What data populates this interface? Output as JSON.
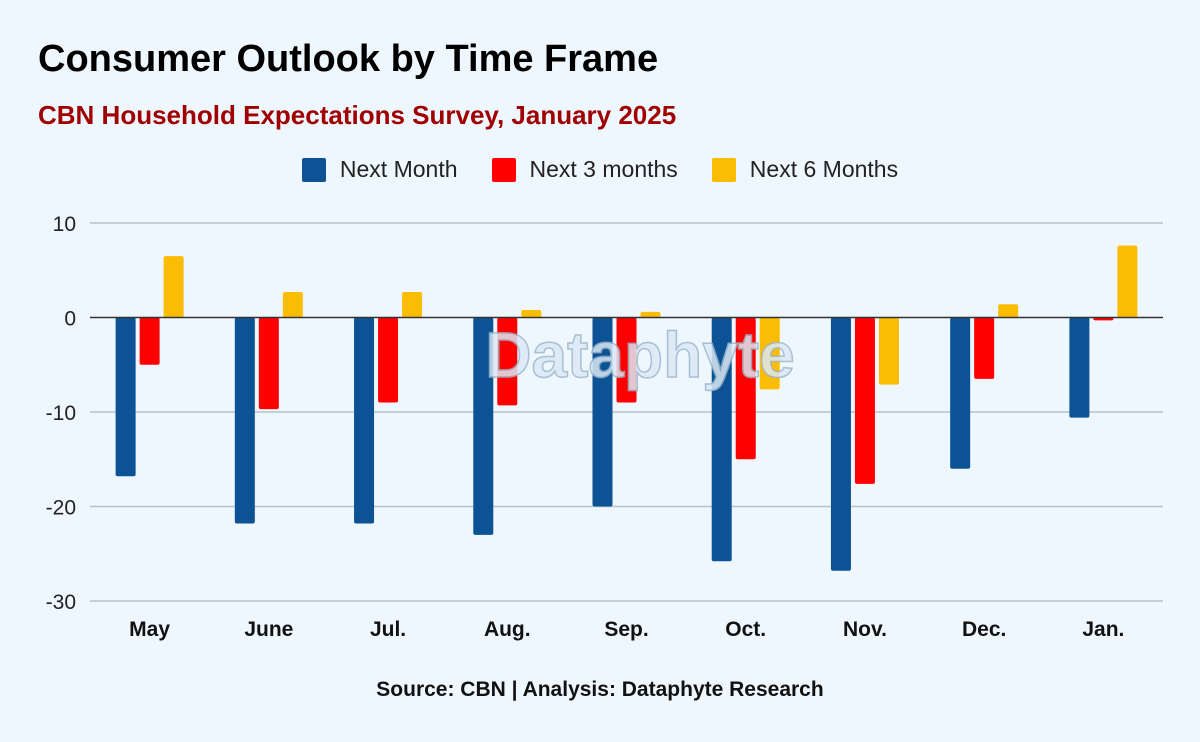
{
  "title": "Consumer Outlook by Time Frame",
  "subtitle": "CBN Household Expectations Survey, January 2025",
  "source": "Source: CBN | Analysis: Dataphyte Research",
  "watermark": "Dataphyte",
  "colors": {
    "next_month": "#0b5394",
    "next_3_months": "#ff0000",
    "next_6_months": "#fbbc04"
  },
  "chart_data": {
    "type": "bar",
    "title": "Consumer Outlook by Time Frame",
    "subtitle": "CBN Household Expectations Survey, January 2025",
    "xlabel": "",
    "ylabel": "",
    "ylim": [
      -30,
      10
    ],
    "yticks": [
      10,
      0,
      -10,
      -20,
      -30
    ],
    "grid": true,
    "legend_position": "top-center",
    "categories": [
      "May",
      "June",
      "Jul.",
      "Aug.",
      "Sep.",
      "Oct.",
      "Nov.",
      "Dec.",
      "Jan."
    ],
    "series": [
      {
        "name": "Next Month",
        "color": "#0b5394",
        "values": [
          -16.8,
          -21.8,
          -21.8,
          -23.0,
          -20.0,
          -25.8,
          -26.8,
          -16.0,
          -10.6
        ]
      },
      {
        "name": "Next 3 months",
        "color": "#ff0000",
        "values": [
          -5.0,
          -9.7,
          -9.0,
          -9.3,
          -9.0,
          -15.0,
          -17.6,
          -6.5,
          -0.3
        ]
      },
      {
        "name": "Next 6 Months",
        "color": "#fbbc04",
        "values": [
          6.5,
          2.7,
          2.7,
          0.8,
          0.6,
          -7.6,
          -7.1,
          1.4,
          7.6
        ]
      }
    ]
  }
}
